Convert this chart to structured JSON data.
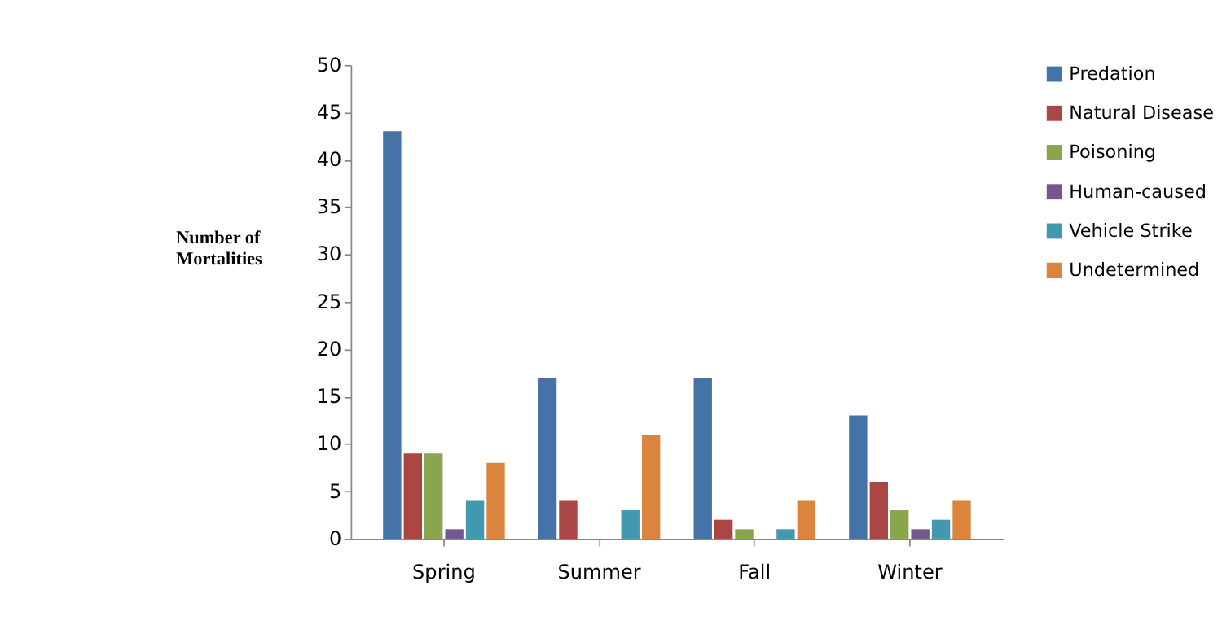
{
  "chart_data": {
    "type": "bar",
    "ylabel": "Number of\nMortalities",
    "categories": [
      "Spring",
      "Summer",
      "Fall",
      "Winter"
    ],
    "series": [
      {
        "name": "Predation",
        "color": "#4572a7",
        "values": [
          43,
          17,
          17,
          13
        ]
      },
      {
        "name": "Natural Disease",
        "color": "#aa4643",
        "values": [
          9,
          4,
          2,
          6
        ]
      },
      {
        "name": "Poisoning",
        "color": "#89a54e",
        "values": [
          9,
          0,
          1,
          3
        ]
      },
      {
        "name": "Human-caused",
        "color": "#71588f",
        "values": [
          1,
          0,
          0,
          1
        ]
      },
      {
        "name": "Vehicle Strike",
        "color": "#4198af",
        "values": [
          4,
          3,
          1,
          2
        ]
      },
      {
        "name": "Undetermined",
        "color": "#db843d",
        "values": [
          8,
          11,
          4,
          4
        ]
      }
    ],
    "ylim": [
      0,
      50
    ],
    "yticks": [
      0,
      5,
      10,
      15,
      20,
      25,
      30,
      35,
      40,
      45,
      50
    ],
    "grid": false,
    "legend": "right"
  }
}
